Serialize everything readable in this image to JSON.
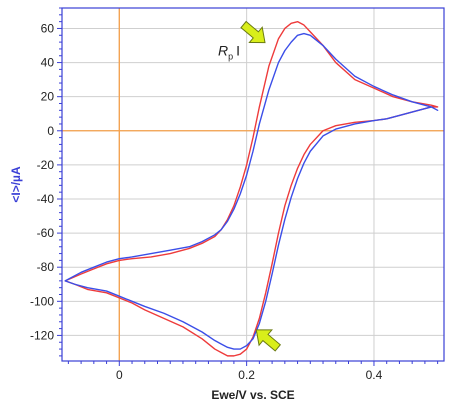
{
  "chart_data": {
    "type": "line",
    "title": "",
    "xlabel": "Ewe/V vs. SCE",
    "ylabel": "<I>/µA",
    "xlim": [
      -0.09,
      0.51
    ],
    "ylim": [
      -135,
      72
    ],
    "xticks": [
      0,
      0.2,
      0.4
    ],
    "xtick_labels": [
      "0",
      "0.2",
      "0.4"
    ],
    "yticks": [
      60,
      40,
      20,
      0,
      -20,
      -40,
      -60,
      -80,
      -100,
      -120
    ],
    "ytick_labels": [
      "60",
      "40",
      "20",
      "0",
      "-20",
      "-40",
      "-60",
      "-80",
      "-100",
      "-120"
    ],
    "grid": true,
    "reference_lines": {
      "x": 0,
      "y": 0,
      "color": "#f5a04a"
    },
    "annotation": {
      "text_main": "R",
      "text_sub": "p",
      "text_after": "I"
    },
    "arrow_color": "#d9ee1a",
    "series": [
      {
        "color": "#ee3b3b",
        "x": [
          -0.085,
          -0.06,
          -0.04,
          -0.02,
          0.0,
          0.02,
          0.05,
          0.08,
          0.11,
          0.13,
          0.15,
          0.16,
          0.17,
          0.18,
          0.19,
          0.2,
          0.21,
          0.22,
          0.235,
          0.25,
          0.26,
          0.27,
          0.28,
          0.29,
          0.3,
          0.32,
          0.34,
          0.37,
          0.4,
          0.43,
          0.46,
          0.49,
          0.5,
          0.49,
          0.47,
          0.44,
          0.42,
          0.4,
          0.37,
          0.34,
          0.32,
          0.3,
          0.29,
          0.28,
          0.27,
          0.26,
          0.25,
          0.24,
          0.23,
          0.22,
          0.21,
          0.2,
          0.19,
          0.18,
          0.17,
          0.16,
          0.15,
          0.13,
          0.1,
          0.07,
          0.04,
          0.02,
          0.0,
          -0.02,
          -0.05,
          -0.07,
          -0.085
        ],
        "y": [
          -88,
          -84,
          -81,
          -78,
          -76,
          -75,
          -74,
          -72,
          -69,
          -66,
          -62,
          -58,
          -52,
          -44,
          -33,
          -20,
          -4,
          14,
          38,
          54,
          60,
          63,
          64,
          62,
          58,
          50,
          40,
          30,
          25,
          20,
          17,
          15,
          14,
          14,
          12,
          9,
          7,
          6,
          5,
          3,
          0,
          -8,
          -14,
          -22,
          -32,
          -44,
          -60,
          -78,
          -95,
          -110,
          -121,
          -128,
          -131,
          -132,
          -132,
          -130,
          -128,
          -122,
          -115,
          -110,
          -105,
          -101,
          -98,
          -95,
          -93,
          -90,
          -88
        ]
      },
      {
        "color": "#3b4ee8",
        "x": [
          -0.085,
          -0.06,
          -0.04,
          -0.02,
          0.0,
          0.02,
          0.05,
          0.08,
          0.11,
          0.13,
          0.15,
          0.16,
          0.17,
          0.18,
          0.19,
          0.2,
          0.21,
          0.22,
          0.235,
          0.25,
          0.26,
          0.27,
          0.28,
          0.29,
          0.3,
          0.32,
          0.34,
          0.37,
          0.4,
          0.43,
          0.46,
          0.49,
          0.5,
          0.49,
          0.47,
          0.44,
          0.42,
          0.4,
          0.37,
          0.34,
          0.32,
          0.3,
          0.29,
          0.28,
          0.27,
          0.26,
          0.25,
          0.24,
          0.23,
          0.22,
          0.21,
          0.2,
          0.19,
          0.18,
          0.17,
          0.16,
          0.15,
          0.13,
          0.1,
          0.07,
          0.04,
          0.02,
          0.0,
          -0.02,
          -0.05,
          -0.07,
          -0.085
        ],
        "y": [
          -88,
          -83,
          -80,
          -77,
          -75,
          -74,
          -72,
          -70,
          -68,
          -65,
          -61,
          -58,
          -53,
          -46,
          -37,
          -26,
          -12,
          4,
          24,
          40,
          47,
          52,
          56,
          57,
          56,
          50,
          42,
          32,
          26,
          21,
          17,
          14,
          12,
          14,
          12,
          9,
          7,
          6,
          4,
          1,
          -3,
          -12,
          -19,
          -28,
          -39,
          -52,
          -67,
          -84,
          -100,
          -113,
          -122,
          -126,
          -128,
          -128,
          -127,
          -125,
          -123,
          -118,
          -112,
          -107,
          -103,
          -100,
          -97,
          -94,
          -92,
          -90,
          -88
        ]
      }
    ]
  }
}
